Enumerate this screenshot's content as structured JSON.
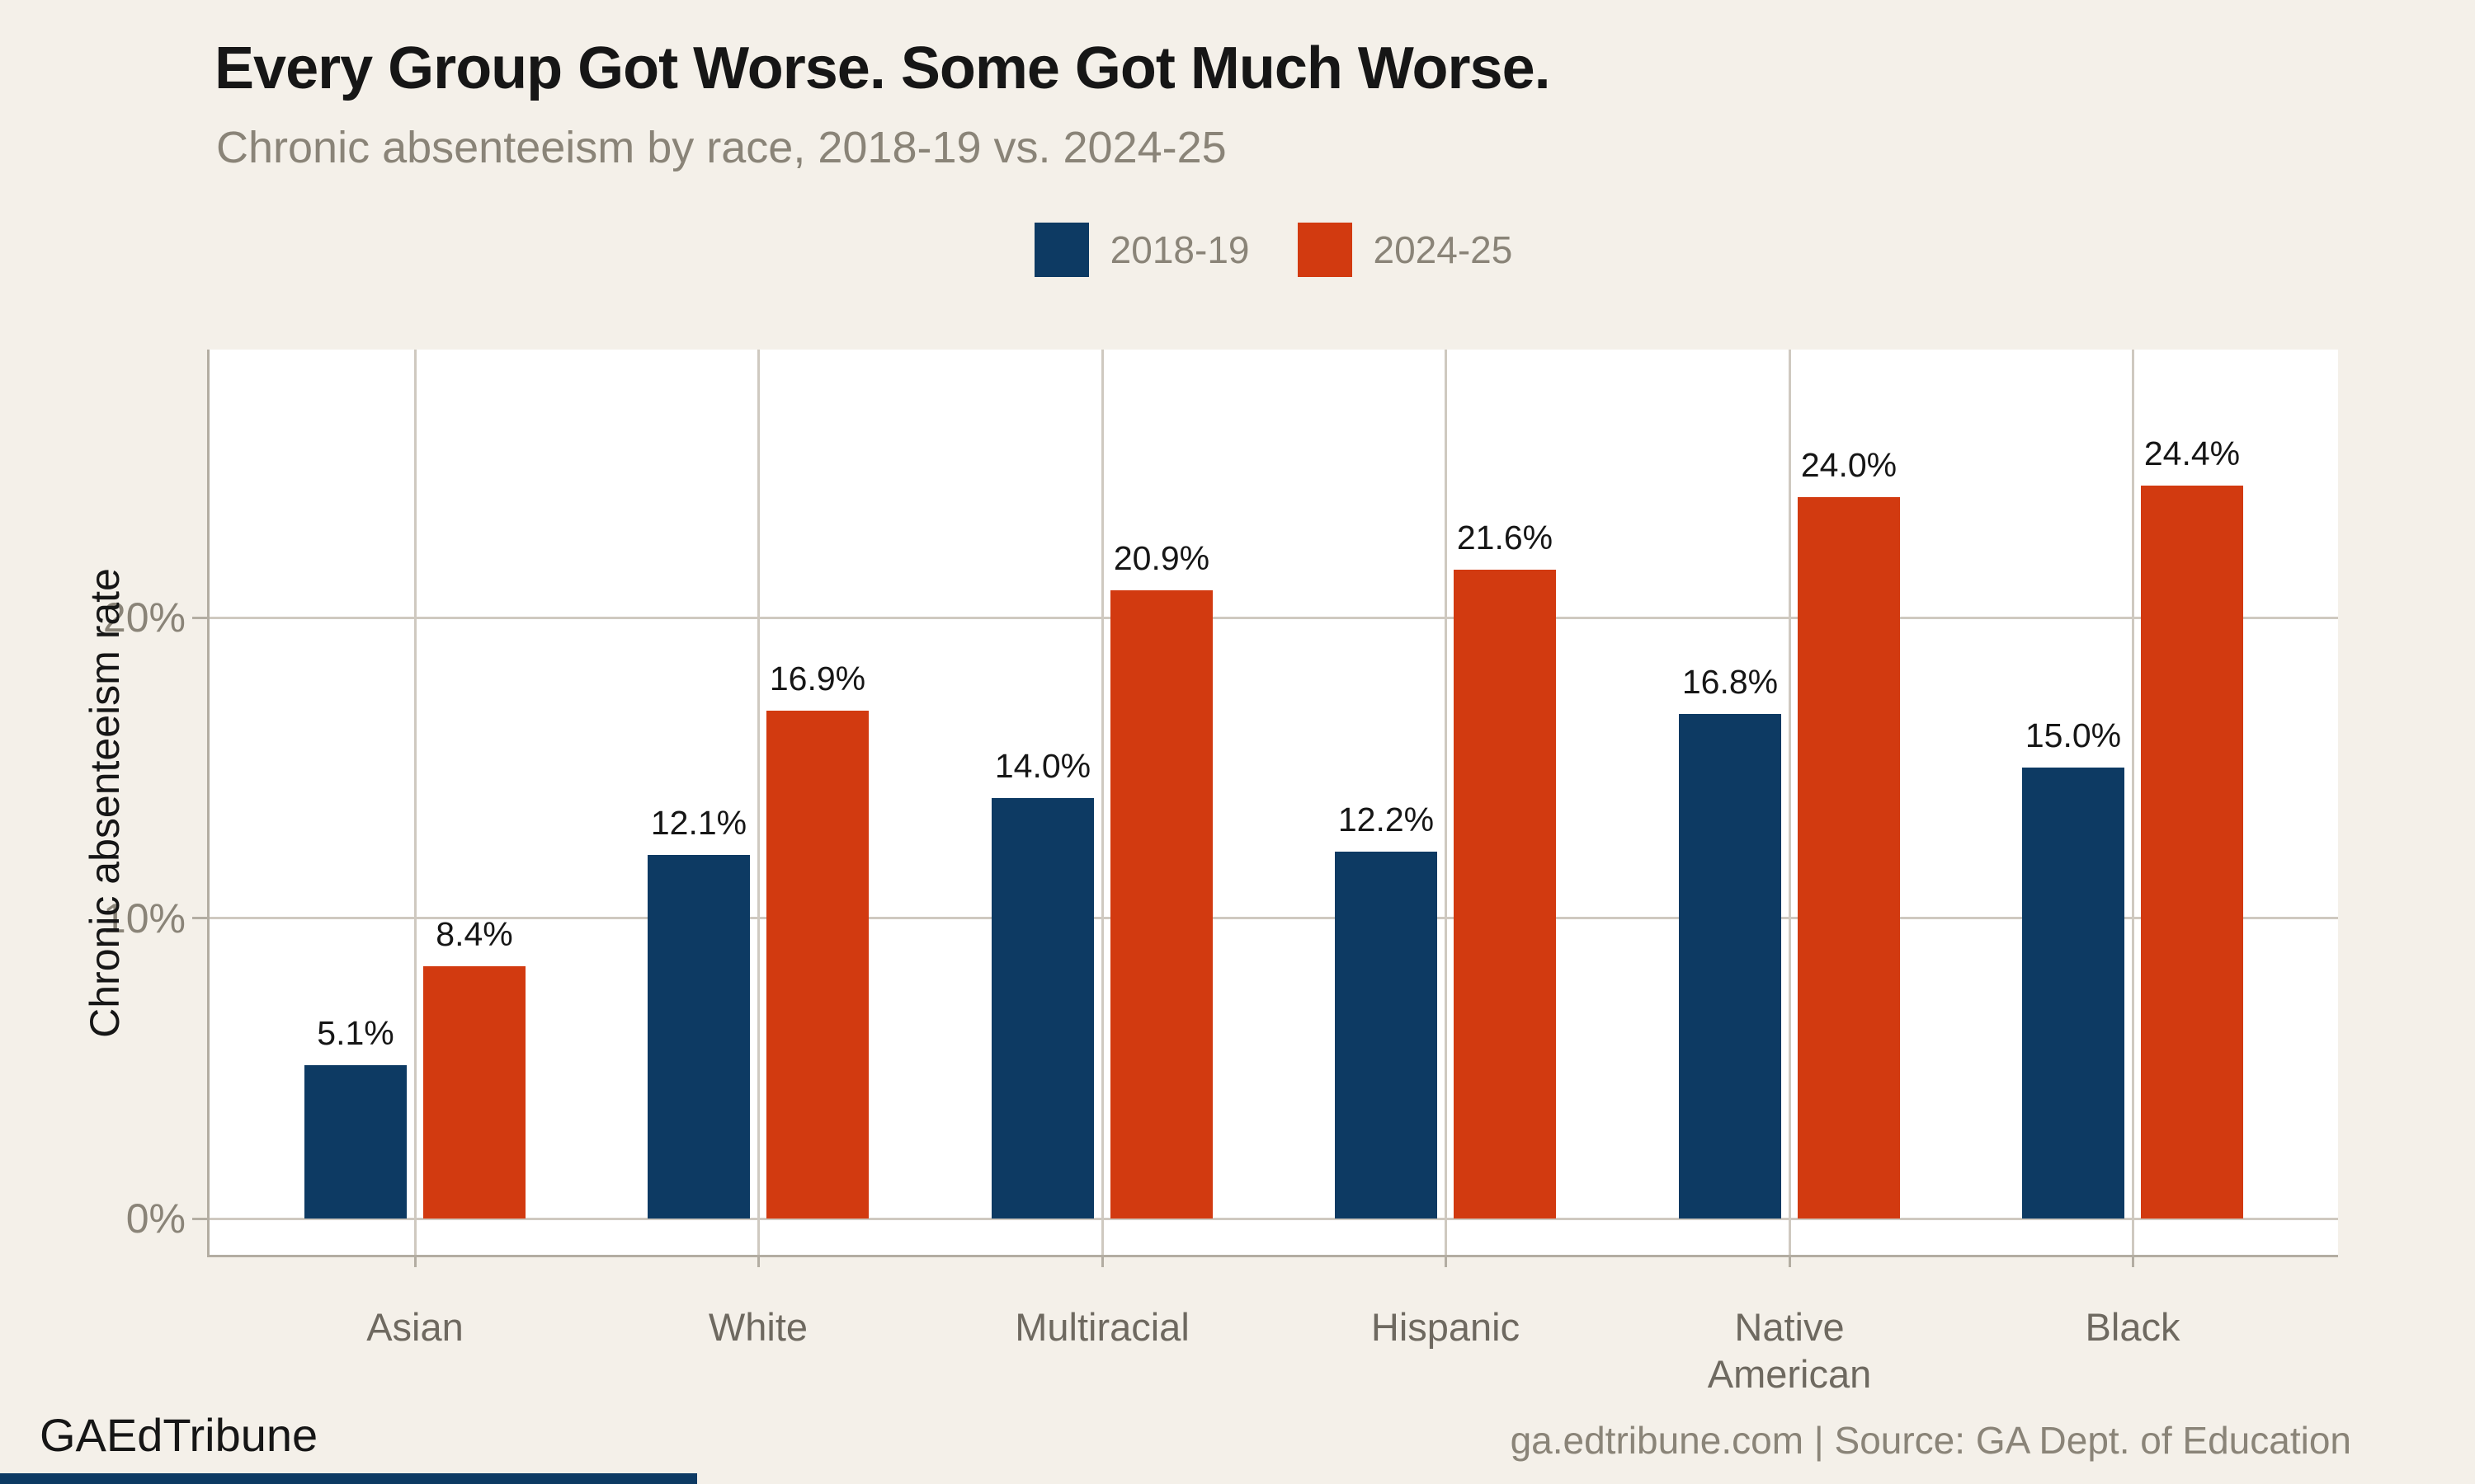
{
  "title": "Every Group Got Worse. Some Got Much Worse.",
  "subtitle": "Chronic absenteeism by race, 2018-19 vs. 2024-25",
  "legend": {
    "items": [
      {
        "label": "2018-19",
        "color": "#0d3a63"
      },
      {
        "label": "2024-25",
        "color": "#d23a10"
      }
    ]
  },
  "y_axis": {
    "title": "Chronic absenteeism rate",
    "tick_labels": [
      "0%",
      "10%",
      "20%"
    ],
    "tick_values": [
      0,
      10,
      20
    ]
  },
  "footer": {
    "brand": "GAEdTribune",
    "source": "ga.edtribune.com | Source: GA Dept. of Education"
  },
  "colors": {
    "background": "#f4f0e9",
    "panel": "#ffffff",
    "grid": "#cfc9c0",
    "axis": "#b3ada2",
    "series_2018": "#0d3a63",
    "series_2024": "#d23a10",
    "accent_bar": "#0d3a63",
    "text_dark": "#161616",
    "text_gray": "#8a8478",
    "xlabel_gray": "#6e6960"
  },
  "chart_data": {
    "type": "bar",
    "title": "Every Group Got Worse. Some Got Much Worse.",
    "subtitle": "Chronic absenteeism by race, 2018-19 vs. 2024-25",
    "categories": [
      "Asian",
      "White",
      "Multiracial",
      "Hispanic",
      "Native American",
      "Black"
    ],
    "series": [
      {
        "name": "2018-19",
        "color": "#0d3a63",
        "values": [
          5.1,
          12.1,
          14.0,
          12.2,
          16.8,
          15.0
        ],
        "value_labels": [
          "5.1%",
          "12.1%",
          "14.0%",
          "12.2%",
          "16.8%",
          "15.0%"
        ]
      },
      {
        "name": "2024-25",
        "color": "#d23a10",
        "values": [
          8.4,
          16.9,
          20.9,
          21.6,
          24.0,
          24.4
        ],
        "value_labels": [
          "8.4%",
          "16.9%",
          "20.9%",
          "21.6%",
          "24.0%",
          "24.4%"
        ]
      }
    ],
    "ylabel": "Chronic absenteeism rate",
    "ylim": [
      0,
      28.9
    ],
    "yticks": [
      0,
      10,
      20
    ],
    "grid": true,
    "legend_position": "top-center",
    "data_labels": true
  }
}
